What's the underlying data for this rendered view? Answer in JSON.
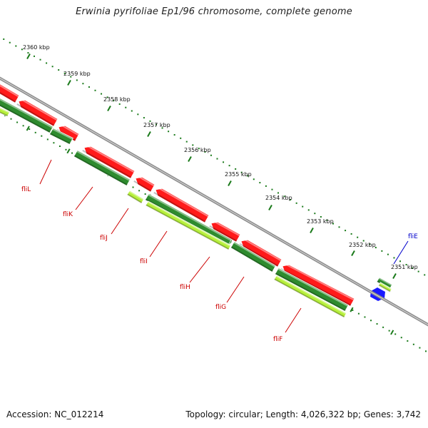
{
  "title": "Erwinia pyrifoliae Ep1/96 chromosome, complete genome",
  "footer": {
    "accession": "Accession: NC_012214",
    "topology": "Topology: circular; Length: 4,026,322 bp; Genes: 3,742"
  },
  "colors": {
    "backbone": "#8c8c8c",
    "cds_forward": "#ff1a1a",
    "cds_reverse_dark": "#2e8b2e",
    "cds_reverse_light": "#b7f03c",
    "gene_blue": "#1a1aff",
    "tick_green": "#1a7a1a",
    "label_red": "#cc0000",
    "label_blue": "#0000cc"
  },
  "scale_ticks": [
    {
      "label": "2360 kbp"
    },
    {
      "label": "2359 kbp"
    },
    {
      "label": "2358 kbp"
    },
    {
      "label": "2357 kbp"
    },
    {
      "label": "2356 kbp"
    },
    {
      "label": "2355 kbp"
    },
    {
      "label": "2354 kbp"
    },
    {
      "label": "2353 kbp"
    },
    {
      "label": "2352 kbp"
    },
    {
      "label": "2351 kbp"
    }
  ],
  "gene_labels": [
    {
      "name": "fliL",
      "color": "#cc0000"
    },
    {
      "name": "fliK",
      "color": "#cc0000"
    },
    {
      "name": "fliJ",
      "color": "#cc0000"
    },
    {
      "name": "fliI",
      "color": "#cc0000"
    },
    {
      "name": "fliH",
      "color": "#cc0000"
    },
    {
      "name": "fliG",
      "color": "#cc0000"
    },
    {
      "name": "fliF",
      "color": "#cc0000"
    },
    {
      "name": "fliE",
      "color": "#0000cc"
    }
  ]
}
